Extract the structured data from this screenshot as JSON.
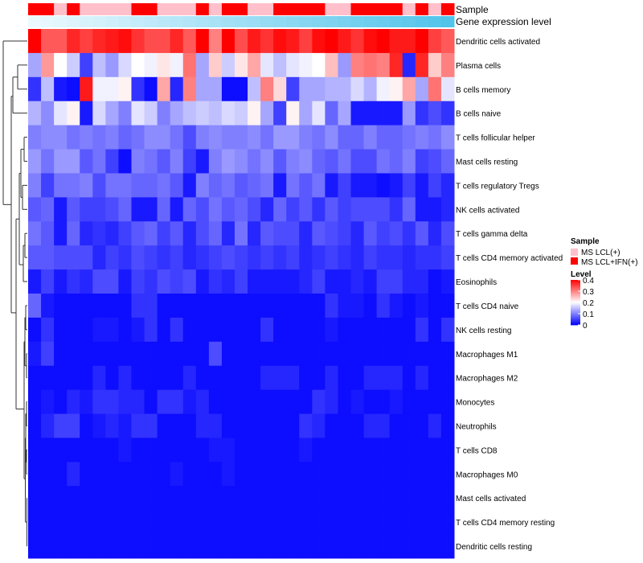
{
  "chart_data": {
    "type": "heatmap",
    "title": "",
    "annotation_labels": {
      "sample": "Sample",
      "expression": "Gene expression level"
    },
    "rows": [
      "Dendritic cells activated",
      "Plasma cells",
      "B cells memory",
      "B cells naive",
      "T cells follicular helper",
      "Mast cells resting",
      "T cells regulatory  Tregs",
      "NK cells activated",
      "T cells gamma delta",
      "T cells CD4 memory activated",
      "Eosinophils",
      "T cells CD4 naive",
      "NK cells resting",
      "Macrophages M1",
      "Macrophages M2",
      "Monocytes",
      "Neutrophils",
      "T cells CD8",
      "Macrophages M0",
      "Mast cells activated",
      "T cells CD4 memory resting",
      "Dendritic cells resting"
    ],
    "sample_groups": [
      "red",
      "red",
      "pink",
      "red",
      "pink",
      "pink",
      "pink",
      "pink",
      "red",
      "red",
      "pink",
      "pink",
      "pink",
      "red",
      "pink",
      "red",
      "red",
      "pink",
      "pink",
      "red",
      "red",
      "red",
      "red",
      "pink",
      "pink",
      "red",
      "red",
      "red",
      "red",
      "pink",
      "red",
      "pink",
      "red"
    ],
    "expression_levels": [
      0.02,
      0.05,
      0.08,
      0.11,
      0.14,
      0.17,
      0.2,
      0.23,
      0.26,
      0.29,
      0.32,
      0.35,
      0.38,
      0.41,
      0.44,
      0.47,
      0.5,
      0.53,
      0.56,
      0.59,
      0.62,
      0.65,
      0.68,
      0.71,
      0.74,
      0.77,
      0.8,
      0.83,
      0.86,
      0.89,
      0.92,
      0.95,
      0.98
    ],
    "values": [
      [
        0.4,
        0.33,
        0.33,
        0.37,
        0.35,
        0.37,
        0.38,
        0.39,
        0.36,
        0.34,
        0.34,
        0.37,
        0.33,
        0.4,
        0.3,
        0.4,
        0.34,
        0.38,
        0.36,
        0.39,
        0.38,
        0.35,
        0.39,
        0.4,
        0.38,
        0.36,
        0.39,
        0.4,
        0.38,
        0.38,
        0.4,
        0.35,
        0.33
      ],
      [
        0.13,
        0.28,
        0.2,
        0.16,
        0.05,
        0.15,
        0.12,
        0.17,
        0.2,
        0.19,
        0.22,
        0.19,
        0.31,
        0.13,
        0.24,
        0.16,
        0.22,
        0.27,
        0.18,
        0.15,
        0.18,
        0.19,
        0.2,
        0.25,
        0.12,
        0.3,
        0.31,
        0.3,
        0.37,
        0.03,
        0.37,
        0.24,
        0.3
      ],
      [
        0.04,
        0.15,
        0.02,
        0.01,
        0.38,
        0.19,
        0.19,
        0.21,
        0.04,
        0.01,
        0.27,
        0.03,
        0.3,
        0.13,
        0.13,
        0.01,
        0.01,
        0.15,
        0.3,
        0.23,
        0.05,
        0.13,
        0.13,
        0.14,
        0.14,
        0.17,
        0.14,
        0.19,
        0.21,
        0.27,
        0.13,
        0.31,
        0.18
      ],
      [
        0.14,
        0.11,
        0.18,
        0.21,
        0.02,
        0.17,
        0.13,
        0.1,
        0.18,
        0.16,
        0.1,
        0.13,
        0.15,
        0.16,
        0.15,
        0.17,
        0.16,
        0.21,
        0.13,
        0.05,
        0.21,
        0.13,
        0.18,
        0.08,
        0.13,
        0.02,
        0.02,
        0.02,
        0.02,
        0.12,
        0.04,
        0.06,
        0.04
      ],
      [
        0.1,
        0.11,
        0.11,
        0.09,
        0.1,
        0.09,
        0.1,
        0.08,
        0.09,
        0.11,
        0.11,
        0.09,
        0.06,
        0.1,
        0.11,
        0.1,
        0.1,
        0.11,
        0.09,
        0.12,
        0.12,
        0.1,
        0.09,
        0.11,
        0.08,
        0.08,
        0.1,
        0.08,
        0.08,
        0.09,
        0.1,
        0.09,
        0.11
      ],
      [
        0.12,
        0.09,
        0.12,
        0.12,
        0.07,
        0.09,
        0.05,
        0.01,
        0.1,
        0.09,
        0.07,
        0.1,
        0.05,
        0.02,
        0.1,
        0.12,
        0.11,
        0.09,
        0.11,
        0.07,
        0.1,
        0.11,
        0.08,
        0.07,
        0.09,
        0.06,
        0.06,
        0.09,
        0.08,
        0.1,
        0.05,
        0.06,
        0.08
      ],
      [
        0.1,
        0.05,
        0.09,
        0.09,
        0.1,
        0.06,
        0.09,
        0.09,
        0.08,
        0.08,
        0.09,
        0.07,
        0.02,
        0.1,
        0.08,
        0.09,
        0.07,
        0.08,
        0.09,
        0.02,
        0.09,
        0.07,
        0.09,
        0.02,
        0.05,
        0.02,
        0.02,
        0.01,
        0.02,
        0.05,
        0.02,
        0.05,
        0.03
      ],
      [
        0.07,
        0.08,
        0.02,
        0.07,
        0.05,
        0.05,
        0.06,
        0.08,
        0.02,
        0.02,
        0.08,
        0.02,
        0.08,
        0.06,
        0.09,
        0.07,
        0.08,
        0.06,
        0.03,
        0.08,
        0.05,
        0.07,
        0.04,
        0.07,
        0.05,
        0.06,
        0.06,
        0.06,
        0.04,
        0.08,
        0.02,
        0.02,
        0.03
      ],
      [
        0.09,
        0.07,
        0.02,
        0.08,
        0.03,
        0.04,
        0.03,
        0.05,
        0.07,
        0.08,
        0.05,
        0.07,
        0.03,
        0.06,
        0.08,
        0.03,
        0.09,
        0.03,
        0.07,
        0.06,
        0.06,
        0.03,
        0.07,
        0.06,
        0.05,
        0.03,
        0.07,
        0.05,
        0.06,
        0.04,
        0.07,
        0.03,
        0.06
      ],
      [
        0.07,
        0.07,
        0.06,
        0.06,
        0.06,
        0.03,
        0.05,
        0.04,
        0.06,
        0.05,
        0.04,
        0.05,
        0.03,
        0.04,
        0.05,
        0.06,
        0.05,
        0.04,
        0.05,
        0.04,
        0.05,
        0.03,
        0.04,
        0.05,
        0.04,
        0.03,
        0.05,
        0.04,
        0.04,
        0.03,
        0.04,
        0.04,
        0.05
      ],
      [
        0.02,
        0.05,
        0.02,
        0.04,
        0.03,
        0.06,
        0.06,
        0.02,
        0.05,
        0.04,
        0.06,
        0.05,
        0.06,
        0.02,
        0.04,
        0.03,
        0.05,
        0.02,
        0.02,
        0.02,
        0.02,
        0.03,
        0.05,
        0.02,
        0.02,
        0.03,
        0.02,
        0.05,
        0.05,
        0.03,
        0.03,
        0.01,
        0.02
      ],
      [
        0.08,
        0.02,
        0.01,
        0.01,
        0.01,
        0.01,
        0.01,
        0.01,
        0.04,
        0.04,
        0.01,
        0.01,
        0.01,
        0.01,
        0.01,
        0.01,
        0.01,
        0.01,
        0.01,
        0.01,
        0.01,
        0.01,
        0.01,
        0.04,
        0.02,
        0.02,
        0.01,
        0.04,
        0.02,
        0.01,
        0.02,
        0.01,
        0.01
      ],
      [
        0.01,
        0.04,
        0.01,
        0.01,
        0.01,
        0.02,
        0.02,
        0.01,
        0.02,
        0.04,
        0.01,
        0.04,
        0.01,
        0.01,
        0.01,
        0.01,
        0.01,
        0.01,
        0.04,
        0.01,
        0.01,
        0.01,
        0.01,
        0.02,
        0.01,
        0.01,
        0.01,
        0.01,
        0.01,
        0.01,
        0.04,
        0.01,
        0.04
      ],
      [
        0.02,
        0.05,
        0.01,
        0.01,
        0.01,
        0.01,
        0.01,
        0.01,
        0.01,
        0.01,
        0.01,
        0.01,
        0.01,
        0.01,
        0.06,
        0.01,
        0.01,
        0.01,
        0.01,
        0.01,
        0.01,
        0.01,
        0.01,
        0.01,
        0.01,
        0.01,
        0.01,
        0.01,
        0.01,
        0.01,
        0.01,
        0.01,
        0.01
      ],
      [
        0.01,
        0.01,
        0.01,
        0.01,
        0.01,
        0.03,
        0.01,
        0.03,
        0.01,
        0.01,
        0.01,
        0.01,
        0.03,
        0.01,
        0.01,
        0.01,
        0.01,
        0.01,
        0.03,
        0.03,
        0.03,
        0.01,
        0.01,
        0.03,
        0.01,
        0.01,
        0.03,
        0.03,
        0.03,
        0.01,
        0.03,
        0.01,
        0.01
      ],
      [
        0.01,
        0.02,
        0.01,
        0.03,
        0.02,
        0.04,
        0.04,
        0.03,
        0.03,
        0.01,
        0.04,
        0.04,
        0.02,
        0.03,
        0.01,
        0.01,
        0.01,
        0.01,
        0.01,
        0.01,
        0.01,
        0.01,
        0.04,
        0.03,
        0.01,
        0.02,
        0.01,
        0.01,
        0.02,
        0.01,
        0.01,
        0.01,
        0.01
      ],
      [
        0.01,
        0.03,
        0.05,
        0.05,
        0.01,
        0.02,
        0.03,
        0.02,
        0.04,
        0.04,
        0.01,
        0.01,
        0.01,
        0.03,
        0.03,
        0.01,
        0.01,
        0.01,
        0.01,
        0.01,
        0.01,
        0.04,
        0.03,
        0.01,
        0.01,
        0.01,
        0.03,
        0.03,
        0.01,
        0.01,
        0.01,
        0.03,
        0.01
      ],
      [
        0.01,
        0.01,
        0.01,
        0.01,
        0.01,
        0.01,
        0.01,
        0.02,
        0.01,
        0.01,
        0.01,
        0.01,
        0.01,
        0.01,
        0.02,
        0.02,
        0.01,
        0.01,
        0.01,
        0.01,
        0.01,
        0.02,
        0.01,
        0.01,
        0.01,
        0.01,
        0.01,
        0.01,
        0.01,
        0.01,
        0.01,
        0.01,
        0.01
      ],
      [
        0.01,
        0.01,
        0.01,
        0.03,
        0.01,
        0.01,
        0.01,
        0.01,
        0.01,
        0.01,
        0.01,
        0.02,
        0.01,
        0.01,
        0.01,
        0.02,
        0.01,
        0.01,
        0.01,
        0.01,
        0.01,
        0.01,
        0.01,
        0.01,
        0.01,
        0.01,
        0.01,
        0.01,
        0.01,
        0.01,
        0.01,
        0.01,
        0.01
      ],
      [
        0.01,
        0.01,
        0.01,
        0.01,
        0.01,
        0.01,
        0.01,
        0.01,
        0.01,
        0.01,
        0.01,
        0.01,
        0.01,
        0.01,
        0.01,
        0.01,
        0.01,
        0.01,
        0.01,
        0.01,
        0.01,
        0.01,
        0.01,
        0.01,
        0.01,
        0.01,
        0.01,
        0.01,
        0.01,
        0.01,
        0.01,
        0.01,
        0.01
      ],
      [
        0.01,
        0.01,
        0.01,
        0.01,
        0.01,
        0.01,
        0.01,
        0.01,
        0.01,
        0.01,
        0.01,
        0.01,
        0.01,
        0.01,
        0.01,
        0.01,
        0.01,
        0.01,
        0.01,
        0.01,
        0.01,
        0.01,
        0.01,
        0.01,
        0.01,
        0.01,
        0.01,
        0.01,
        0.01,
        0.01,
        0.01,
        0.01,
        0.01
      ],
      [
        0.01,
        0.01,
        0.01,
        0.01,
        0.01,
        0.01,
        0.01,
        0.01,
        0.01,
        0.01,
        0.01,
        0.01,
        0.01,
        0.01,
        0.01,
        0.01,
        0.01,
        0.01,
        0.01,
        0.01,
        0.01,
        0.01,
        0.01,
        0.01,
        0.01,
        0.01,
        0.01,
        0.01,
        0.01,
        0.01,
        0.01,
        0.01,
        0.01
      ]
    ],
    "legend": {
      "sample": {
        "title": "Sample",
        "entries": [
          {
            "label": "MS LCL(+)",
            "color": "#ffc0cb"
          },
          {
            "label": "MS LCL+IFN(+)",
            "color": "#ff0000"
          }
        ]
      },
      "level": {
        "title": "Level",
        "ticks": [
          "0.4",
          "0.3",
          "0.2",
          "0.1",
          "0"
        ],
        "tick_values": [
          0.4,
          0.3,
          0.2,
          0.1,
          0
        ],
        "range": [
          0,
          0.4
        ]
      }
    },
    "colors": {
      "low": "#0000ff",
      "mid": "#ffffff",
      "high": "#ff0000",
      "sample_pink": "#ffc0cb",
      "sample_red": "#ff0000",
      "expr_low": "#eefaff",
      "expr_high": "#4fc3ea"
    }
  }
}
